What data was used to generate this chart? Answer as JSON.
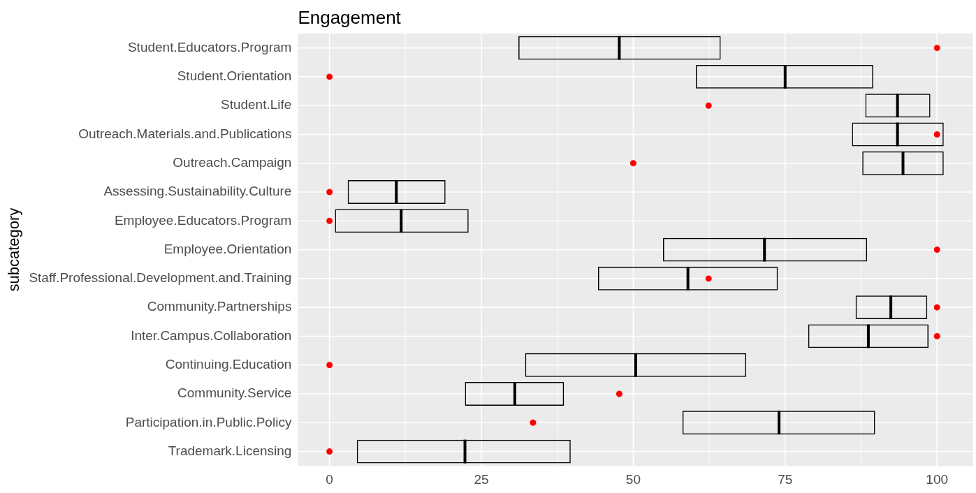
{
  "chart_data": {
    "type": "box",
    "title": "Engagement",
    "ylabel": "subcategory",
    "orientation": "horizontal",
    "categories": [
      "Student.Educators.Program",
      "Student.Orientation",
      "Student.Life",
      "Outreach.Materials.and.Publications",
      "Outreach.Campaign",
      "Assessing.Sustainability.Culture",
      "Employee.Educators.Program",
      "Employee.Orientation",
      "Staff.Professional.Development.and.Training",
      "Community.Partnerships",
      "Inter.Campus.Collaboration",
      "Continuing.Education",
      "Community.Service",
      "Participation.in.Public.Policy",
      "Trademark.Licensing"
    ],
    "series": [
      {
        "type": "box",
        "color": "#000000",
        "boxes": [
          {
            "low": 31.1,
            "q1": 31.1,
            "median": 47.7,
            "q3": 64.4,
            "high": 64.4
          },
          {
            "low": 60.3,
            "q1": 60.3,
            "median": 75.0,
            "q3": 89.5,
            "high": 89.5
          },
          {
            "low": 88.2,
            "q1": 88.2,
            "median": 93.5,
            "q3": 98.9,
            "high": 98.9
          },
          {
            "low": 86.0,
            "q1": 86.0,
            "median": 93.5,
            "q3": 101.1,
            "high": 101.1
          },
          {
            "low": 87.7,
            "q1": 87.7,
            "median": 94.4,
            "q3": 101.1,
            "high": 101.1
          },
          {
            "low": 3.0,
            "q1": 3.0,
            "median": 11.0,
            "q3": 19.1,
            "high": 19.1
          },
          {
            "low": 0.9,
            "q1": 0.9,
            "median": 11.8,
            "q3": 22.9,
            "high": 22.9
          },
          {
            "low": 54.9,
            "q1": 54.9,
            "median": 71.6,
            "q3": 88.5,
            "high": 88.5
          },
          {
            "low": 44.2,
            "q1": 44.2,
            "median": 59.0,
            "q3": 73.8,
            "high": 73.8
          },
          {
            "low": 86.6,
            "q1": 86.6,
            "median": 92.4,
            "q3": 98.4,
            "high": 98.4
          },
          {
            "low": 78.8,
            "q1": 78.8,
            "median": 88.7,
            "q3": 98.6,
            "high": 98.6
          },
          {
            "low": 32.2,
            "q1": 32.2,
            "median": 50.4,
            "q3": 68.6,
            "high": 68.6
          },
          {
            "low": 22.3,
            "q1": 22.3,
            "median": 30.5,
            "q3": 38.6,
            "high": 38.6
          },
          {
            "low": 58.1,
            "q1": 58.1,
            "median": 74.0,
            "q3": 89.8,
            "high": 89.8
          },
          {
            "low": 4.5,
            "q1": 4.5,
            "median": 22.3,
            "q3": 39.7,
            "high": 39.7
          }
        ]
      },
      {
        "type": "scatter",
        "color": "#ff0000",
        "values": [
          100,
          0,
          62.4,
          100,
          50,
          0,
          0,
          100,
          62.4,
          100,
          100,
          0,
          47.7,
          33.5,
          0
        ]
      }
    ],
    "xlim": [
      -5.2,
      105.9
    ],
    "xticks": [
      0,
      25,
      50,
      75,
      100
    ],
    "grid": true,
    "legend": false,
    "marker": "circle"
  }
}
